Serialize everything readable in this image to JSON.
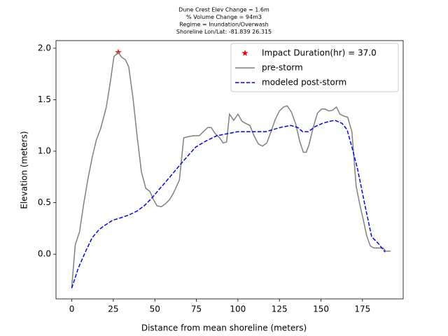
{
  "chart_data": {
    "type": "line",
    "title": [
      "Dune Crest Elev Change = 1.6m",
      "% Volume Change = 94m3",
      "Regime = Inundation/Overwash",
      "Shoreline Lon/Lat: -81.839 26.315"
    ],
    "xlabel": "Distance from mean shoreline (meters)",
    "ylabel": "Elevation (meters)",
    "xlim": [
      -9.5,
      199.5
    ],
    "ylim": [
      -0.434,
      2.074
    ],
    "xticks": [
      0,
      25,
      50,
      75,
      100,
      125,
      150,
      175
    ],
    "yticks": [
      {
        "value": 0,
        "label": "0.0"
      },
      0.5,
      {
        "value": 1,
        "label": "1.0"
      },
      1.5,
      {
        "value": 2,
        "label": "2.0"
      }
    ],
    "legend": "upper right",
    "series": [
      {
        "name": "Impact Duration(hr) = 37.0",
        "color": "#ff0000",
        "marker": "star",
        "x": [
          28.0
        ],
        "values": [
          1.96
        ]
      },
      {
        "name": "pre-storm",
        "color": "#808080",
        "style": "solid",
        "x": [
          0,
          2.1,
          4.7,
          7.2,
          9.7,
          12.3,
          14.8,
          17.4,
          20.8,
          23.3,
          25.4,
          28.0,
          30.1,
          32.2,
          34.3,
          36.9,
          39.4,
          41.9,
          44.5,
          47.0,
          49.2,
          51.3,
          53.8,
          56.4,
          58.9,
          61.4,
          64.8,
          67.4,
          69.9,
          73.3,
          76.7,
          79.2,
          81.8,
          83.9,
          86.4,
          89.0,
          91.1,
          93.2,
          94.9,
          97.5,
          100,
          102.5,
          104.7,
          107.2,
          109.7,
          112.3,
          114.8,
          117.4,
          119.9,
          122.5,
          125,
          127.5,
          129.7,
          132.2,
          134.7,
          137.3,
          139.4,
          141.1,
          142.8,
          145.3,
          147.9,
          150.4,
          152.5,
          154.7,
          157.2,
          159.3,
          161.4,
          164.0,
          166.1,
          168.6,
          171.2,
          173.3,
          175.4,
          177.5,
          179.7,
          181.8,
          184.7,
          187.3,
          189.0,
          191.9
        ],
        "values": [
          -0.32,
          0.09,
          0.22,
          0.49,
          0.73,
          0.94,
          1.11,
          1.22,
          1.43,
          1.68,
          1.92,
          1.96,
          1.91,
          1.89,
          1.82,
          1.51,
          1.14,
          0.8,
          0.64,
          0.61,
          0.53,
          0.47,
          0.46,
          0.49,
          0.53,
          0.6,
          0.72,
          1.13,
          1.14,
          1.15,
          1.15,
          1.19,
          1.23,
          1.23,
          1.17,
          1.13,
          1.08,
          1.09,
          1.36,
          1.3,
          1.36,
          1.29,
          1.27,
          1.25,
          1.15,
          1.07,
          1.05,
          1.08,
          1.19,
          1.31,
          1.39,
          1.43,
          1.44,
          1.38,
          1.27,
          1.09,
          0.99,
          0.99,
          1.06,
          1.23,
          1.37,
          1.41,
          1.41,
          1.39,
          1.4,
          1.43,
          1.36,
          1.34,
          1.33,
          1.19,
          0.66,
          0.49,
          0.34,
          0.18,
          0.08,
          0.06,
          0.06,
          0.06,
          0.03,
          0.03
        ]
      },
      {
        "name": "modeled post-storm",
        "color": "#0000ff",
        "style": "dashed",
        "x": [
          0,
          3.8,
          8.1,
          12.3,
          16.5,
          19.9,
          24.6,
          28.8,
          34.3,
          39.4,
          43.6,
          47.9,
          52.1,
          56.4,
          60.6,
          64.8,
          69.1,
          74.6,
          80.9,
          87.3,
          93.6,
          100,
          108.5,
          116.9,
          125.4,
          131.8,
          136,
          139,
          142.4,
          146.6,
          150.8,
          155.1,
          158.5,
          162.7,
          165.7,
          168.6,
          172,
          176.3,
          180.5,
          184.7,
          188.6
        ],
        "values": [
          -0.33,
          -0.14,
          0.02,
          0.16,
          0.24,
          0.28,
          0.33,
          0.35,
          0.38,
          0.42,
          0.47,
          0.54,
          0.62,
          0.7,
          0.78,
          0.86,
          0.94,
          1.04,
          1.1,
          1.15,
          1.17,
          1.19,
          1.19,
          1.19,
          1.23,
          1.25,
          1.23,
          1.19,
          1.19,
          1.24,
          1.27,
          1.29,
          1.3,
          1.27,
          1.21,
          1.04,
          0.83,
          0.49,
          0.17,
          0.1,
          0.02
        ]
      }
    ]
  }
}
